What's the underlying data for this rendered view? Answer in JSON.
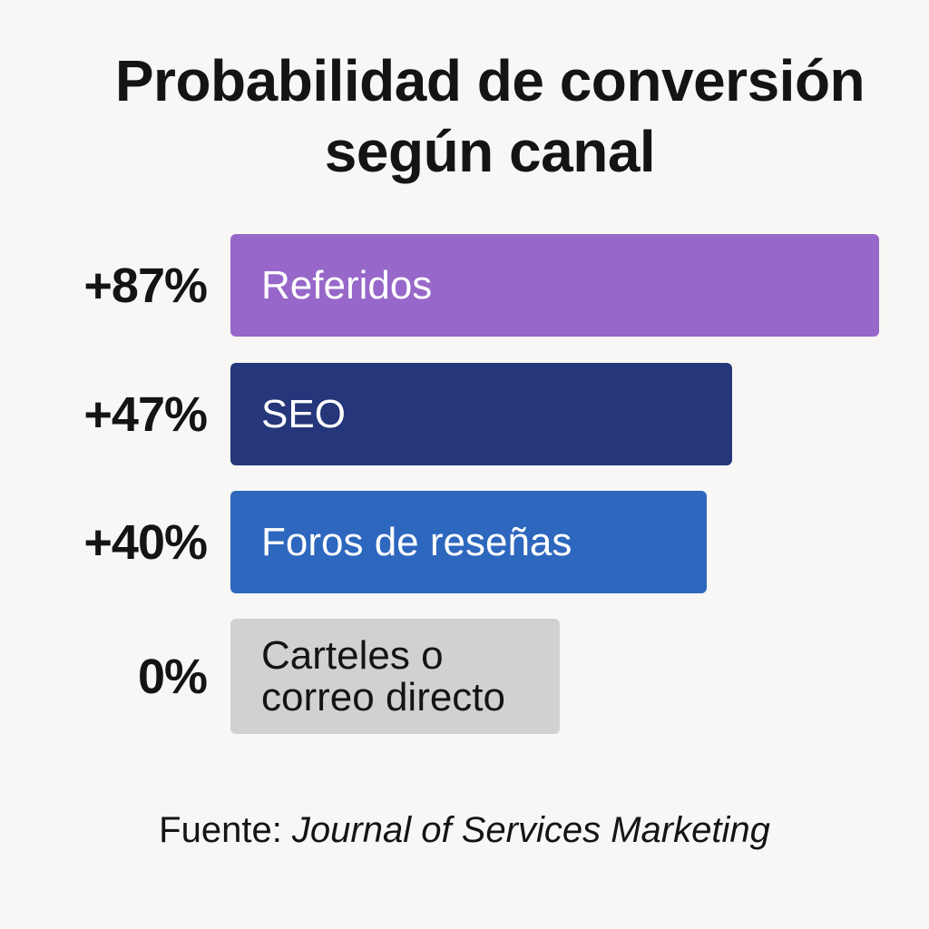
{
  "title_lines": [
    "Probabilidad de conversión",
    "según canal"
  ],
  "source": {
    "prefix": "Fuente: ",
    "journal": "Journal of Services Marketing"
  },
  "chart_data": {
    "type": "bar",
    "orientation": "horizontal",
    "title": "Probabilidad de conversión según canal",
    "categories": [
      "Referidos",
      "SEO",
      "Foros de reseñas",
      "Carteles o correo directo"
    ],
    "values": [
      87,
      47,
      40,
      0
    ],
    "value_labels": [
      "+87%",
      "+47%",
      "+40%",
      "0%"
    ],
    "bar_label_lines": [
      [
        "Referidos"
      ],
      [
        "SEO"
      ],
      [
        "Foros de reseñas"
      ],
      [
        "Carteles o",
        "correo directo"
      ]
    ],
    "colors": [
      "#9767c9",
      "#25377a",
      "#2d67be",
      "#d1d1d3"
    ],
    "label_colors": [
      "#ffffff",
      "#ffffff",
      "#ffffff",
      "#141414"
    ],
    "grid": false,
    "legend": "none"
  }
}
